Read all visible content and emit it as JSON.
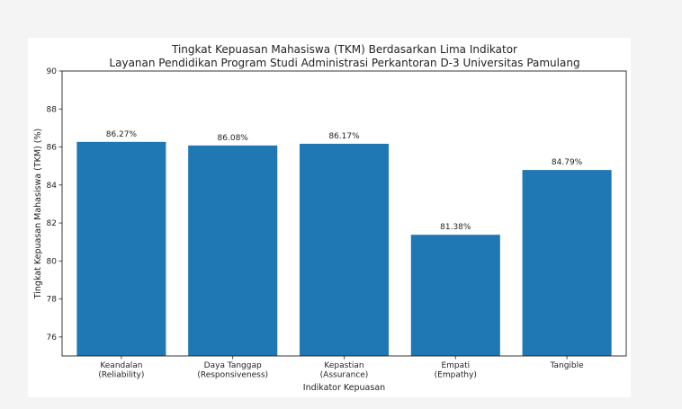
{
  "chart_data": {
    "type": "bar",
    "title": "Tingkat Kepuasan Mahasiswa (TKM) Berdasarkan Lima Indikator\nLayanan Pendidikan Program Studi Administrasi Perkantoran D-3 Universitas Pamulang",
    "title_lines": [
      "Tingkat Kepuasan Mahasiswa (TKM) Berdasarkan Lima Indikator",
      "Layanan Pendidikan Program Studi Administrasi Perkantoran D-3 Universitas Pamulang"
    ],
    "xlabel": "Indikator Kepuasan",
    "ylabel": "Tingkat Kepuasan Mahasiswa (TKM) (%)",
    "categories": [
      [
        "Keandalan",
        "(Reliability)"
      ],
      [
        "Daya Tanggap",
        "(Responsiveness)"
      ],
      [
        "Kepastian",
        "(Assurance)"
      ],
      [
        "Empati",
        "(Empathy)"
      ],
      [
        "Tangible"
      ]
    ],
    "values": [
      86.27,
      86.08,
      86.17,
      81.38,
      84.79
    ],
    "data_labels": [
      "86.27%",
      "86.08%",
      "86.17%",
      "81.38%",
      "84.79%"
    ],
    "ylim": [
      75,
      90
    ],
    "yticks": [
      76,
      78,
      80,
      82,
      84,
      86,
      88,
      90
    ],
    "grid": false,
    "bar_color": "#1f77b4"
  }
}
